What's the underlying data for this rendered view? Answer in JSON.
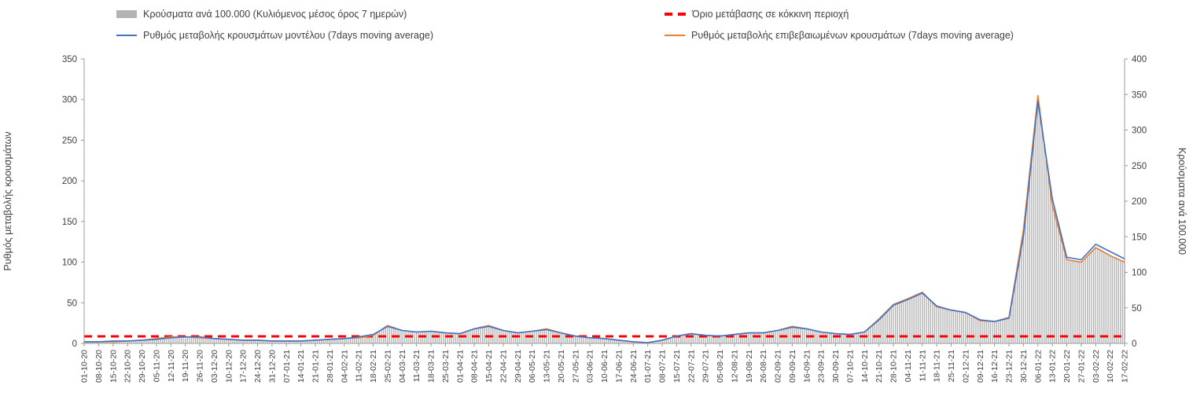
{
  "chart_data": {
    "type": "bar+line combo (epidemic curve)",
    "title": "",
    "ylabel_left": "Ρυθμός μεταβολής κρουσμάτων",
    "ylabel_right": "Κρούσματα ανά 100.000",
    "legend_position": "top",
    "grid": false,
    "left_axis": {
      "min": 0,
      "max": 350,
      "ticks": [
        0,
        50,
        100,
        150,
        200,
        250,
        300,
        350
      ]
    },
    "right_axis": {
      "min": 0,
      "max": 400,
      "ticks": [
        0,
        50,
        100,
        150,
        200,
        250,
        300,
        350,
        400
      ]
    },
    "categories": [
      "01-10-20",
      "08-10-20",
      "15-10-20",
      "22-10-20",
      "29-10-20",
      "05-11-20",
      "12-11-20",
      "19-11-20",
      "26-11-20",
      "03-12-20",
      "10-12-20",
      "17-12-20",
      "24-12-20",
      "31-12-20",
      "07-01-21",
      "14-01-21",
      "21-01-21",
      "28-01-21",
      "04-02-21",
      "11-02-21",
      "18-02-21",
      "25-02-21",
      "04-03-21",
      "11-03-21",
      "18-03-21",
      "25-03-21",
      "01-04-21",
      "08-04-21",
      "15-04-21",
      "22-04-21",
      "29-04-21",
      "06-05-21",
      "13-05-21",
      "20-05-21",
      "27-05-21",
      "03-06-21",
      "10-06-21",
      "17-06-21",
      "24-06-21",
      "01-07-21",
      "08-07-21",
      "15-07-21",
      "22-07-21",
      "29-07-21",
      "05-08-21",
      "12-08-21",
      "19-08-21",
      "26-08-21",
      "02-09-21",
      "09-09-21",
      "16-09-21",
      "23-09-21",
      "30-09-21",
      "07-10-21",
      "14-10-21",
      "21-10-21",
      "28-10-21",
      "04-11-21",
      "11-11-21",
      "18-11-21",
      "25-11-21",
      "02-12-21",
      "09-12-21",
      "16-12-21",
      "23-12-21",
      "30-12-21",
      "06-01-22",
      "13-01-22",
      "20-01-22",
      "27-01-22",
      "03-02-22",
      "10-02-22",
      "17-02-22"
    ],
    "series": [
      {
        "name": "Κρούσματα ανά 100.000 (Κυλιόμενος μέσος όρος 7 ημερών)",
        "type": "bar",
        "axis": "right",
        "color": "#b3b3b3",
        "values": [
          2,
          2,
          2,
          3,
          5,
          7,
          9,
          9,
          8,
          7,
          6,
          5,
          5,
          3,
          3,
          3,
          5,
          6,
          7,
          8,
          11,
          25,
          18,
          16,
          17,
          15,
          14,
          21,
          25,
          18,
          15,
          17,
          21,
          15,
          10,
          8,
          7,
          5,
          2,
          1,
          5,
          10,
          14,
          11,
          10,
          13,
          15,
          15,
          18,
          24,
          21,
          16,
          14,
          13,
          16,
          34,
          55,
          63,
          72,
          51,
          47,
          43,
          32,
          31,
          37,
          160,
          349,
          194,
          118,
          114,
          135,
          123,
          114
        ]
      },
      {
        "name": "Όριο μετάβασης σε κόκκινη περιοχή",
        "type": "threshold",
        "axis": "right",
        "color": "#ff0000",
        "value": 10
      },
      {
        "name": "Ρυθμός μεταβολής κρουσμάτων μοντέλου (7days moving average)",
        "type": "line",
        "axis": "left",
        "color": "#4472c4",
        "values": [
          2,
          2,
          3,
          3,
          4,
          5,
          7,
          8,
          8,
          6,
          5,
          4,
          4,
          3,
          3,
          3,
          4,
          5,
          6,
          8,
          11,
          21,
          16,
          14,
          15,
          13,
          12,
          18,
          21,
          16,
          13,
          15,
          17,
          13,
          9,
          7,
          6,
          4,
          2,
          1,
          4,
          9,
          12,
          10,
          9,
          11,
          13,
          13,
          16,
          20,
          18,
          14,
          12,
          11,
          14,
          29,
          47,
          54,
          62,
          46,
          41,
          38,
          29,
          27,
          31,
          132,
          298,
          178,
          106,
          103,
          122,
          113,
          104
        ]
      },
      {
        "name": "Ρυθμός μεταβολής επιβεβαιωμένων κρουσμάτων (7days moving average)",
        "type": "line",
        "axis": "left",
        "color": "#ed7d31",
        "values": [
          2,
          2,
          2,
          3,
          4,
          6,
          8,
          8,
          7,
          6,
          5,
          4,
          4,
          3,
          3,
          3,
          4,
          5,
          6,
          7,
          10,
          22,
          16,
          14,
          15,
          13,
          12,
          18,
          22,
          16,
          13,
          15,
          18,
          13,
          9,
          7,
          6,
          4,
          2,
          1,
          4,
          9,
          12,
          10,
          9,
          11,
          13,
          13,
          16,
          21,
          18,
          14,
          12,
          11,
          14,
          30,
          48,
          55,
          63,
          45,
          41,
          38,
          28,
          27,
          32,
          140,
          305,
          170,
          103,
          100,
          118,
          108,
          100
        ]
      }
    ]
  }
}
